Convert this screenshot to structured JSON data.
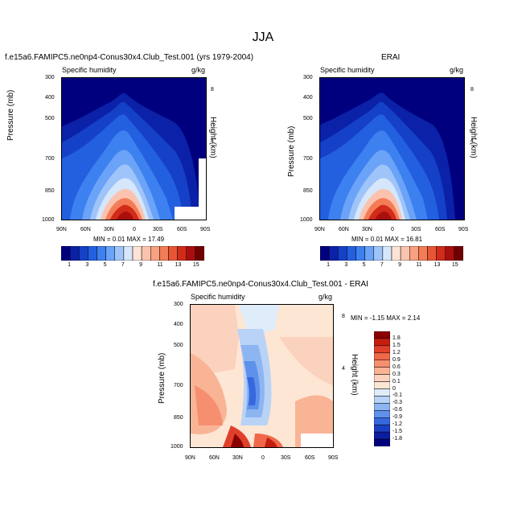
{
  "title": "JJA",
  "panels": {
    "top_left": {
      "title": "f.e15a6.FAMIPC5.ne0np4-Conus30x4.Club_Test.001 (yrs 1979-2004)",
      "variable": "Specific humidity",
      "units": "g/kg",
      "ylabel": "Pressure (mb)",
      "ylabel_right": "Height (km)",
      "minmax": "MIN =  0.01  MAX =  17.49"
    },
    "top_right": {
      "title": "ERAI",
      "variable": "Specific humidity",
      "units": "g/kg",
      "ylabel": "Pressure (mb)",
      "ylabel_right": "Height (km)",
      "minmax": "MIN =  0.01  MAX =  16.81"
    },
    "bottom": {
      "title": "f.e15a6.FAMIPC5.ne0np4-Conus30x4.Club_Test.001 - ERAI",
      "variable": "Specific humidity",
      "units": "g/kg",
      "ylabel": "Pressure (mb)",
      "ylabel_right": "Height (km)",
      "minmax": "MIN = -1.15  MAX =  2.14"
    }
  },
  "axes": {
    "x_ticks": [
      "90N",
      "60N",
      "30N",
      "0",
      "30S",
      "60S",
      "90S"
    ],
    "p_ticks": [
      "300",
      "400",
      "500",
      "700",
      "850",
      "1000"
    ],
    "z_ticks": [
      "8",
      "4"
    ]
  },
  "colorbar_top": {
    "labels": [
      "1",
      "3",
      "5",
      "7",
      "9",
      "11",
      "13",
      "15"
    ],
    "colors": [
      "#00007e",
      "#0a21a8",
      "#1540c8",
      "#2360e0",
      "#3d80f0",
      "#6aa3f7",
      "#9fc4f9",
      "#d6e6fb",
      "#fbe3d6",
      "#fbc3ae",
      "#f8a080",
      "#f37c57",
      "#e85535",
      "#d12b1a",
      "#a80f0e",
      "#700000"
    ]
  },
  "colorbar_diff": {
    "labels": [
      "1.8",
      "1.5",
      "1.2",
      "0.9",
      "0.6",
      "0.3",
      "0.1",
      "0",
      "-0.1",
      "-0.3",
      "-0.6",
      "-0.9",
      "-1.2",
      "-1.5",
      "-1.8"
    ],
    "colors": [
      "#8b0000",
      "#c41e10",
      "#e0402a",
      "#f06848",
      "#f68f70",
      "#f9b496",
      "#fbd2bd",
      "#fde6d4",
      "#dfecfa",
      "#b9d3f6",
      "#8db5f2",
      "#5e91ea",
      "#3768dd",
      "#1a3fc4",
      "#0c1ea0",
      "#00007e"
    ]
  },
  "chart_data": [
    {
      "type": "heatmap",
      "title": "f.e15a6.FAMIPC5.ne0np4-Conus30x4.Club_Test.001 (yrs 1979-2004)",
      "xlabel": "",
      "ylabel": "Pressure (mb)",
      "x_ticks": [
        "90N",
        "60N",
        "30N",
        "0",
        "30S",
        "60S",
        "90S"
      ],
      "ylim": [
        1000,
        300
      ],
      "units": "g/kg",
      "min": 0.01,
      "max": 17.49,
      "peak_latitude": "10N",
      "surface_max_level": 1000
    },
    {
      "type": "heatmap",
      "title": "ERAI",
      "ylabel": "Pressure (mb)",
      "x_ticks": [
        "90N",
        "60N",
        "30N",
        "0",
        "30S",
        "60S",
        "90S"
      ],
      "ylim": [
        1000,
        300
      ],
      "units": "g/kg",
      "min": 0.01,
      "max": 16.81,
      "peak_latitude": "10N"
    },
    {
      "type": "heatmap",
      "title": "f.e15a6.FAMIPC5.ne0np4-Conus30x4.Club_Test.001 - ERAI",
      "ylabel": "Pressure (mb)",
      "x_ticks": [
        "90N",
        "60N",
        "30N",
        "0",
        "30S",
        "60S",
        "90S"
      ],
      "ylim": [
        1000,
        300
      ],
      "units": "g/kg",
      "min": -1.15,
      "max": 2.14
    }
  ]
}
